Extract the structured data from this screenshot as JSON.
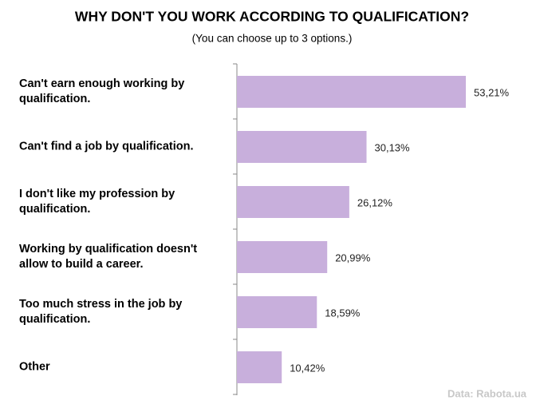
{
  "chart_data": {
    "type": "bar",
    "orientation": "horizontal",
    "title": "WHY DON'T YOU WORK ACCORDING TO QUALIFICATION?",
    "subtitle": "(You can choose up to 3 options.)",
    "source": "Data: Rabota.ua",
    "categories": [
      "Can't earn enough working by qualification.",
      "Can't find a job by qualification.",
      "I don't like my profession by qualification.",
      "Working by qualification doesn't allow to build a career.",
      "Too much stress in the job by qualification.",
      "Other"
    ],
    "values": [
      53.21,
      30.13,
      26.12,
      20.99,
      18.59,
      10.42
    ],
    "value_labels": [
      "53,21%",
      "30,13%",
      "26,12%",
      "20,99%",
      "18,59%",
      "10,42%"
    ],
    "color": "#c8afdc"
  }
}
